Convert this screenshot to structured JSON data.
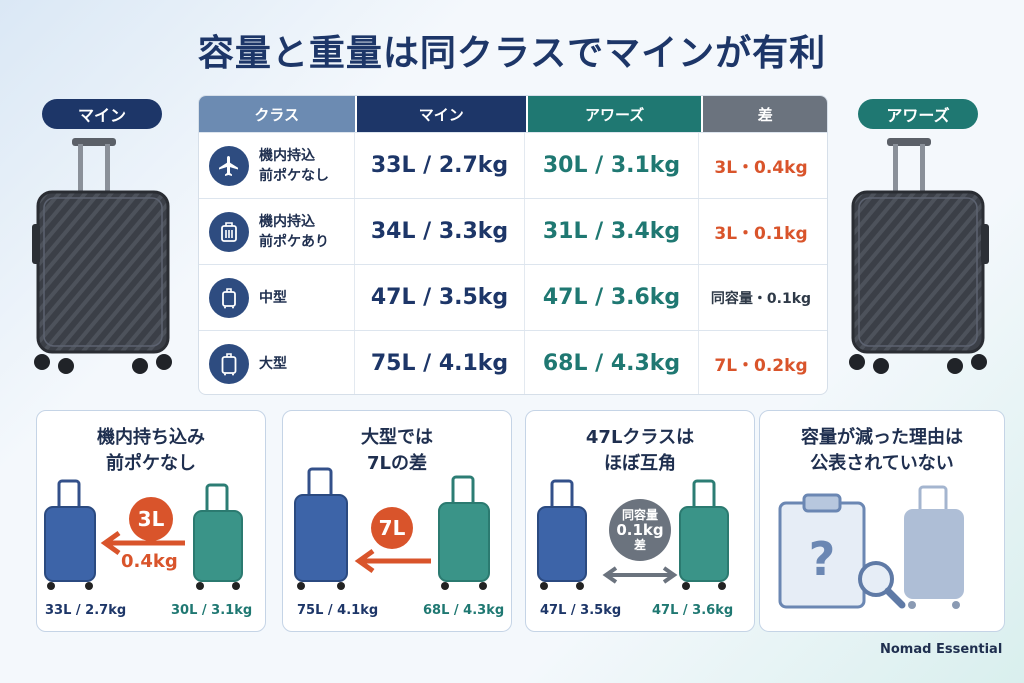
{
  "title": "容量と重量は同クラスでマインが有利",
  "side_labels": {
    "left": "マイン",
    "right": "アワーズ"
  },
  "table": {
    "headers": {
      "class": "クラス",
      "main": "マイン",
      "awa": "アワーズ",
      "diff": "差"
    },
    "rows": [
      {
        "icon": "airplane-icon",
        "class": "機内持込\n前ポケなし",
        "main": "33L / 2.7kg",
        "awa": "30L / 3.1kg",
        "diff": "3L・0.4kg"
      },
      {
        "icon": "suitcase-pocket-icon",
        "class": "機内持込\n前ポケあり",
        "main": "34L / 3.3kg",
        "awa": "31L / 3.4kg",
        "diff": "3L・0.1kg"
      },
      {
        "icon": "suitcase-icon",
        "class": "中型",
        "main": "47L / 3.5kg",
        "awa": "47L / 3.6kg",
        "diff": "同容量・0.1kg"
      },
      {
        "icon": "suitcase-icon",
        "class": "大型",
        "main": "75L / 4.1kg",
        "awa": "68L / 4.3kg",
        "diff": "7L・0.2kg"
      }
    ]
  },
  "cards": [
    {
      "title": "機内持ち込み\n前ポケなし",
      "badge": "3L",
      "sub": "0.4kg",
      "left_caption": "33L / 2.7kg",
      "right_caption": "30L / 3.1kg"
    },
    {
      "title": "大型では\n7Lの差",
      "badge": "7L",
      "left_caption": "75L / 4.1kg",
      "right_caption": "68L / 4.3kg"
    },
    {
      "title": "47Lクラスは\nほぼ互角",
      "badge_lines": [
        "同容量",
        "0.1kg",
        "差"
      ],
      "left_caption": "47L / 3.5kg",
      "right_caption": "47L / 3.6kg"
    },
    {
      "title": "容量が減った理由は\n公表されていない"
    }
  ],
  "colors": {
    "navy": "#1d3668",
    "teal": "#1f7872",
    "orange": "#d9542b",
    "grey": "#6b737e"
  },
  "brand": "Nomad Essential"
}
